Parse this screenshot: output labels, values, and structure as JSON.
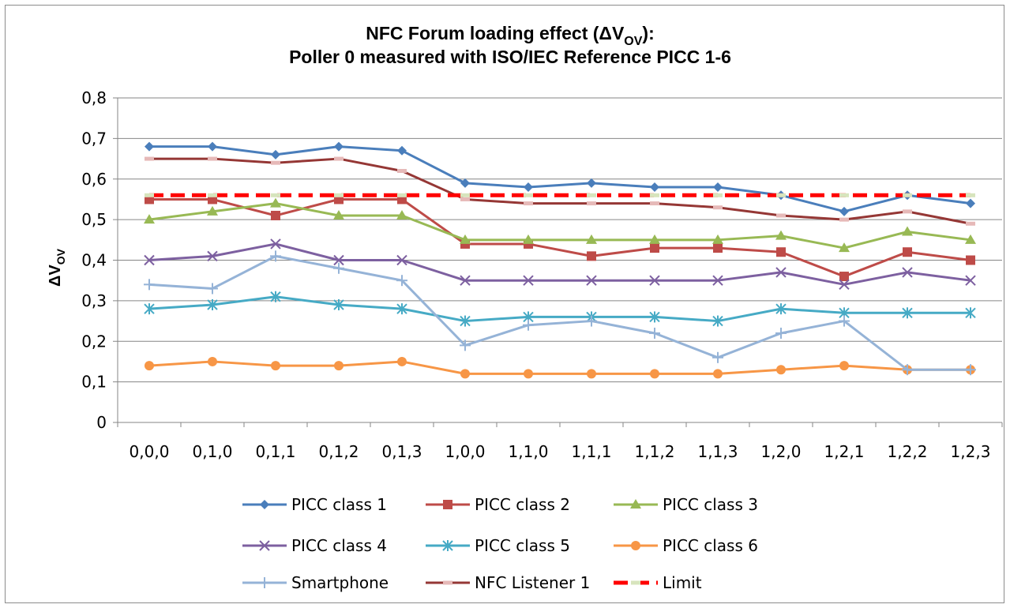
{
  "chart_data": {
    "type": "line",
    "title_main": "NFC Forum loading effect (ΔV",
    "title_sub": "OV",
    "title_end": "):",
    "title_line2": "Poller 0 measured with ISO/IEC Reference PICC 1-6",
    "ylabel_main": "ΔV",
    "ylabel_sub": "OV",
    "ylim": [
      0,
      0.8
    ],
    "yticks": [
      0,
      0.1,
      0.2,
      0.3,
      0.4,
      0.5,
      0.6,
      0.7,
      0.8
    ],
    "ytick_labels": [
      "0",
      "0,1",
      "0,2",
      "0,3",
      "0,4",
      "0,5",
      "0,6",
      "0,7",
      "0,8"
    ],
    "grid": true,
    "legend_position": "bottom",
    "categories": [
      "0,0,0",
      "0,1,0",
      "0,1,1",
      "0,1,2",
      "0,1,3",
      "1,0,0",
      "1,1,0",
      "1,1,1",
      "1,1,2",
      "1,1,3",
      "1,2,0",
      "1,2,1",
      "1,2,2",
      "1,2,3"
    ],
    "series": [
      {
        "name": "PICC class 1",
        "color": "#4a7ebb",
        "marker": "diamond",
        "values": [
          0.68,
          0.68,
          0.66,
          0.68,
          0.67,
          0.59,
          0.58,
          0.59,
          0.58,
          0.58,
          0.56,
          0.52,
          0.56,
          0.54
        ]
      },
      {
        "name": "PICC class 2",
        "color": "#be4b48",
        "marker": "square",
        "values": [
          0.55,
          0.55,
          0.51,
          0.55,
          0.55,
          0.44,
          0.44,
          0.41,
          0.43,
          0.43,
          0.42,
          0.36,
          0.42,
          0.4
        ]
      },
      {
        "name": "PICC class 3",
        "color": "#98b954",
        "marker": "triangle",
        "values": [
          0.5,
          0.52,
          0.54,
          0.51,
          0.51,
          0.45,
          0.45,
          0.45,
          0.45,
          0.45,
          0.46,
          0.43,
          0.47,
          0.45
        ]
      },
      {
        "name": "PICC class 4",
        "color": "#7d60a0",
        "marker": "x",
        "values": [
          0.4,
          0.41,
          0.44,
          0.4,
          0.4,
          0.35,
          0.35,
          0.35,
          0.35,
          0.35,
          0.37,
          0.34,
          0.37,
          0.35
        ]
      },
      {
        "name": "PICC class 5",
        "color": "#46aac5",
        "marker": "star",
        "values": [
          0.28,
          0.29,
          0.31,
          0.29,
          0.28,
          0.25,
          0.26,
          0.26,
          0.26,
          0.25,
          0.28,
          0.27,
          0.27,
          0.27
        ]
      },
      {
        "name": "PICC class 6",
        "color": "#f79646",
        "marker": "circle",
        "values": [
          0.14,
          0.15,
          0.14,
          0.14,
          0.15,
          0.12,
          0.12,
          0.12,
          0.12,
          0.12,
          0.13,
          0.14,
          0.13,
          0.13
        ]
      },
      {
        "name": "Smartphone",
        "color": "#95b3d7",
        "marker": "plus",
        "values": [
          0.34,
          0.33,
          0.41,
          0.38,
          0.35,
          0.19,
          0.24,
          0.25,
          0.22,
          0.16,
          0.22,
          0.25,
          0.13,
          0.13
        ]
      },
      {
        "name": "NFC Listener 1",
        "color": "#953735",
        "marker": "dash",
        "marker_color": "#e6b9b8",
        "values": [
          0.65,
          0.65,
          0.64,
          0.65,
          0.62,
          0.55,
          0.54,
          0.54,
          0.54,
          0.53,
          0.51,
          0.5,
          0.52,
          0.49
        ]
      },
      {
        "name": "Limit",
        "color": "#ff0000",
        "marker": "dash",
        "marker_color": "#d7e4bd",
        "dashed": true,
        "values": [
          0.56,
          0.56,
          0.56,
          0.56,
          0.56,
          0.56,
          0.56,
          0.56,
          0.56,
          0.56,
          0.56,
          0.56,
          0.56,
          0.56
        ]
      }
    ]
  }
}
